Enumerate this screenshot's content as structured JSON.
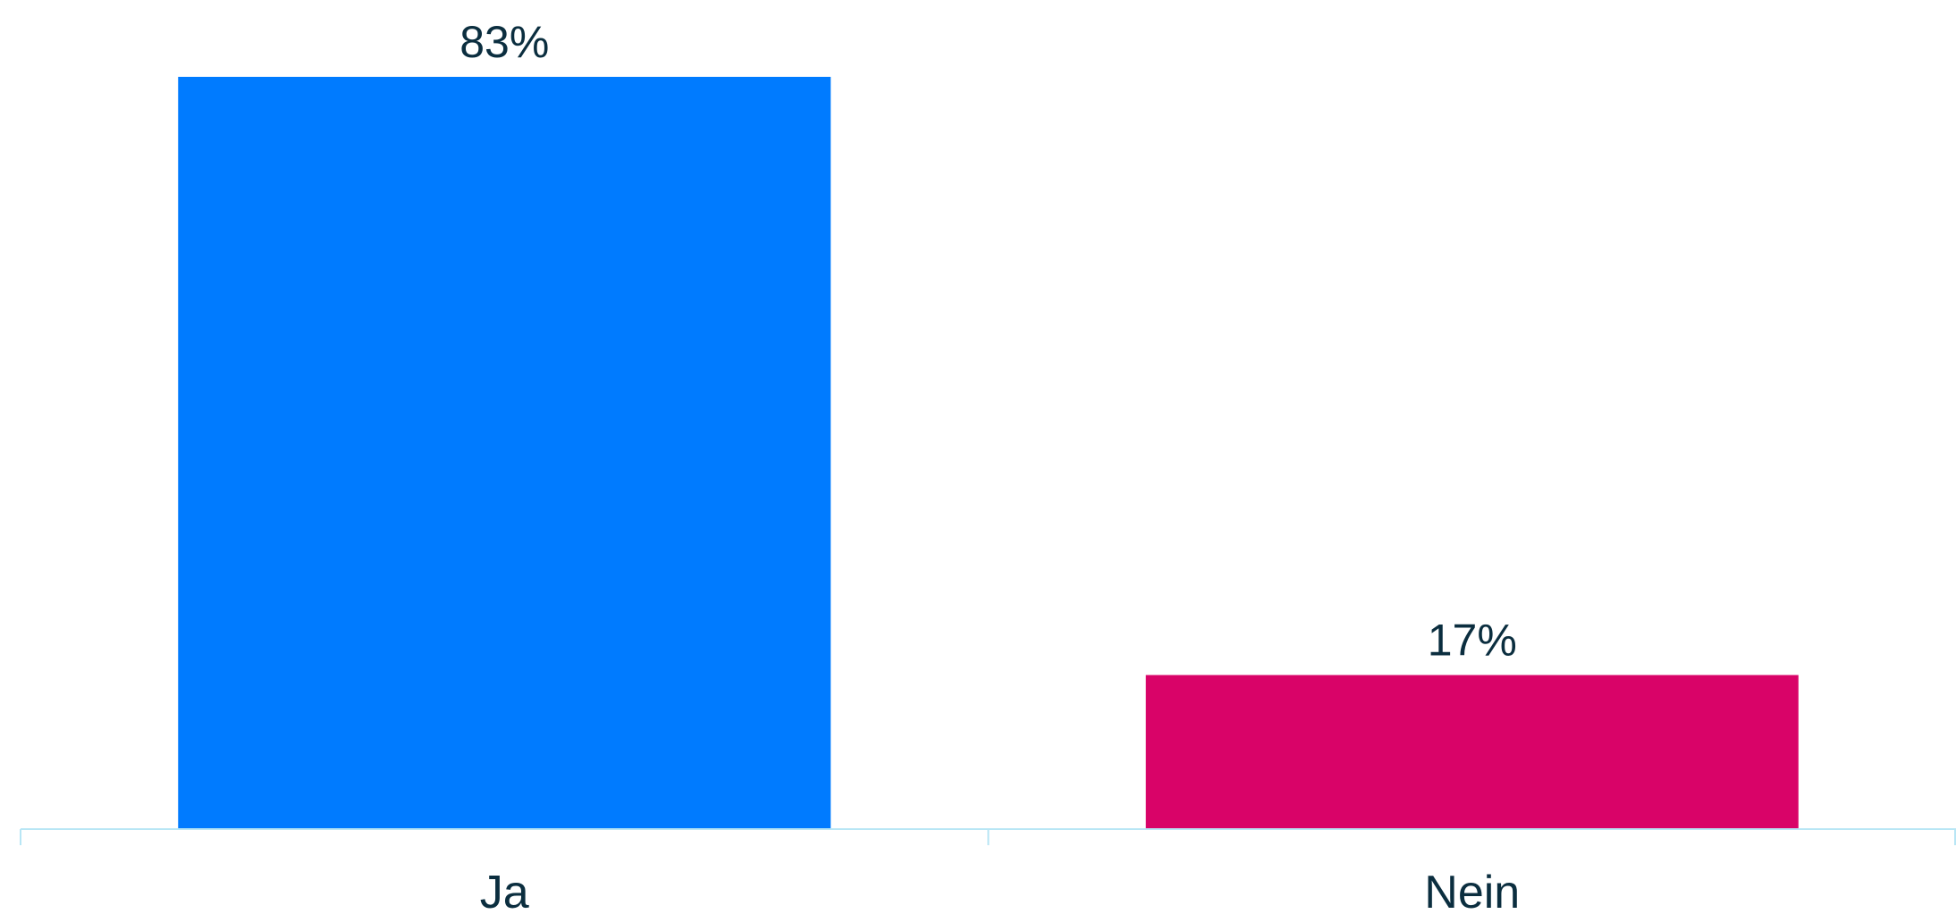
{
  "chart_data": {
    "type": "bar",
    "categories": [
      "Ja",
      "Nein"
    ],
    "values": [
      83,
      17
    ],
    "value_labels": [
      "83%",
      "17%"
    ],
    "colors": [
      "#007bff",
      "#d90368"
    ],
    "title": "",
    "xlabel": "",
    "ylabel": "",
    "ylim": [
      0,
      83
    ],
    "grid": false,
    "axis_color": "#b8e6f5",
    "label_color": "#0b2e3f"
  }
}
